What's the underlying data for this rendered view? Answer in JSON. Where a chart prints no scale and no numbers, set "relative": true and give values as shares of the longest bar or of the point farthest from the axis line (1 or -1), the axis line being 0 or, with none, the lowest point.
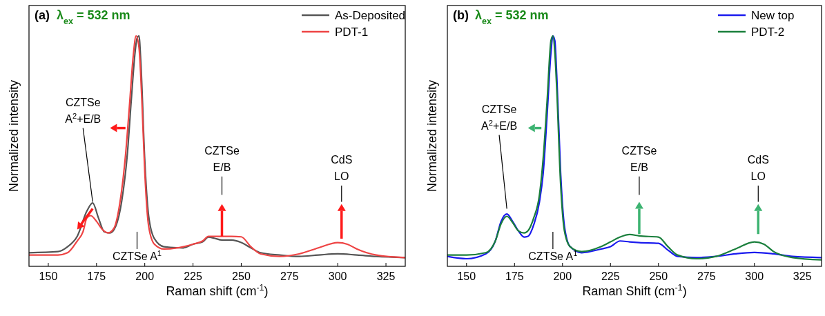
{
  "chart_data": [
    {
      "type": "line",
      "title": "(a)",
      "subtitle": "λ$_{ex}$ = 532 nm",
      "xlabel": "Raman shift (cm$^{-1}$)",
      "ylabel": "Normalized intensity",
      "relative": true,
      "xlim": [
        140,
        335
      ],
      "xticks": [
        150,
        175,
        200,
        225,
        250,
        275,
        300,
        325
      ],
      "legend": "top right",
      "line_style": "solid",
      "marker": "none",
      "grid": false,
      "series": [
        {
          "name": "As-Deposited",
          "color": "#555555",
          "x": [
            140,
            155,
            160,
            165,
            170,
            173,
            176,
            179,
            182,
            185,
            188,
            191,
            193,
            195,
            196,
            197,
            198,
            200,
            202,
            205,
            210,
            220,
            225,
            230,
            233,
            236,
            240,
            245,
            250,
            255,
            260,
            270,
            280,
            290,
            300,
            310,
            320,
            335
          ],
          "values": [
            0.059,
            0.064,
            0.085,
            0.13,
            0.24,
            0.275,
            0.21,
            0.15,
            0.145,
            0.175,
            0.28,
            0.49,
            0.72,
            0.93,
            0.99,
            1.0,
            0.88,
            0.46,
            0.22,
            0.12,
            0.085,
            0.08,
            0.096,
            0.106,
            0.127,
            0.122,
            0.114,
            0.114,
            0.103,
            0.08,
            0.059,
            0.049,
            0.043,
            0.049,
            0.054,
            0.049,
            0.043,
            0.038
          ]
        },
        {
          "name": "PDT-1",
          "color": "#ee4444",
          "x": [
            140,
            155,
            160,
            165,
            168,
            170,
            172,
            175,
            178,
            181,
            184,
            187,
            190,
            192,
            194,
            195.5,
            197,
            198.5,
            200,
            202,
            205,
            210,
            220,
            225,
            230,
            233,
            236,
            240,
            245,
            250,
            255,
            260,
            270,
            280,
            290,
            300,
            305,
            310,
            320,
            335
          ],
          "values": [
            0.049,
            0.049,
            0.059,
            0.11,
            0.15,
            0.21,
            0.22,
            0.195,
            0.16,
            0.145,
            0.165,
            0.27,
            0.48,
            0.69,
            0.91,
            1.0,
            0.95,
            0.72,
            0.41,
            0.175,
            0.096,
            0.075,
            0.085,
            0.096,
            0.11,
            0.13,
            0.13,
            0.13,
            0.13,
            0.128,
            0.085,
            0.054,
            0.043,
            0.054,
            0.08,
            0.103,
            0.096,
            0.075,
            0.049,
            0.038
          ]
        }
      ],
      "annotations": [
        "CZTSe\nA$^{2}$+E/B",
        "CZTSe A$^{1}$",
        "CZTSe\nE/B",
        "CdS\nLO"
      ]
    },
    {
      "type": "line",
      "title": "(b)",
      "subtitle": "λ$_{ex}$ = 532 nm",
      "xlabel": "Raman Shift (cm$^{-1}$)",
      "ylabel": "Normalized intensity",
      "relative": true,
      "xlim": [
        140,
        335
      ],
      "xticks": [
        150,
        175,
        200,
        225,
        250,
        275,
        300,
        325
      ],
      "legend": "top right",
      "line_style": "solid",
      "marker": "none",
      "grid": false,
      "series": [
        {
          "name": "New top",
          "color": "#1a1aee",
          "x": [
            140,
            150,
            160,
            165,
            168,
            171,
            174,
            177,
            180,
            182,
            185,
            188,
            190,
            192,
            194,
            195,
            196,
            197,
            199,
            201,
            204,
            210,
            220,
            225,
            230,
            235,
            240,
            250,
            255,
            260,
            270,
            280,
            290,
            300,
            310,
            320,
            335
          ],
          "values": [
            0.043,
            0.033,
            0.054,
            0.11,
            0.195,
            0.227,
            0.195,
            0.154,
            0.127,
            0.13,
            0.18,
            0.28,
            0.41,
            0.66,
            0.93,
            1.0,
            0.98,
            0.83,
            0.41,
            0.175,
            0.085,
            0.059,
            0.075,
            0.085,
            0.11,
            0.106,
            0.103,
            0.1,
            0.07,
            0.043,
            0.038,
            0.043,
            0.054,
            0.06,
            0.054,
            0.043,
            0.038
          ]
        },
        {
          "name": "PDT-2",
          "color": "#1a7f3c",
          "x": [
            140,
            150,
            160,
            165,
            168,
            171,
            174,
            177,
            180,
            182,
            185,
            188,
            190,
            192,
            194,
            195,
            196,
            197,
            199,
            201,
            204,
            210,
            220,
            225,
            230,
            235,
            240,
            250,
            255,
            260,
            270,
            280,
            290,
            300,
            305,
            310,
            320,
            335
          ],
          "values": [
            0.049,
            0.049,
            0.059,
            0.11,
            0.185,
            0.217,
            0.19,
            0.154,
            0.145,
            0.154,
            0.21,
            0.31,
            0.475,
            0.72,
            0.98,
            1.0,
            0.93,
            0.77,
            0.36,
            0.154,
            0.085,
            0.064,
            0.085,
            0.106,
            0.127,
            0.138,
            0.132,
            0.127,
            0.085,
            0.049,
            0.033,
            0.043,
            0.075,
            0.106,
            0.096,
            0.064,
            0.038,
            0.028
          ]
        }
      ],
      "annotations": [
        "CZTSe\nA$^{2}$+E/B",
        "CZTSe A$^{1}$",
        "CZTSe\nE/B",
        "CdS\nLO"
      ]
    }
  ]
}
